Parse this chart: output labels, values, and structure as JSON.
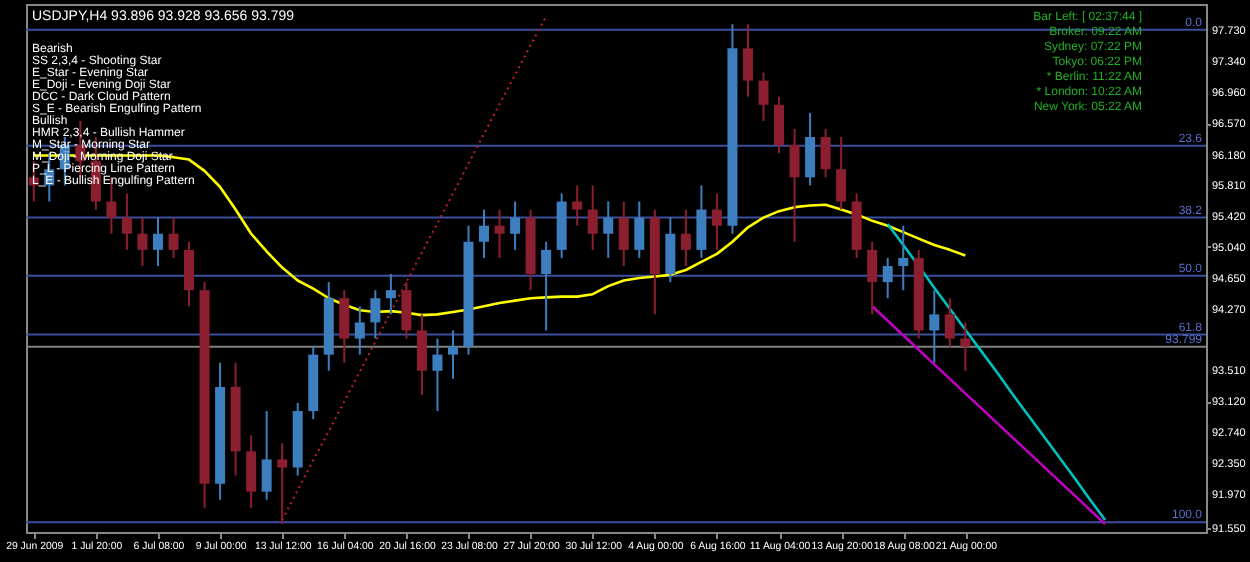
{
  "chart_data": {
    "type": "candlestick",
    "title": "USDJPY,H4  93.896 93.928 93.656 93.799",
    "categories": [
      "29 Jun 2009",
      null,
      null,
      null,
      "1 Jul 20:00",
      null,
      null,
      null,
      "6 Jul 08:00",
      null,
      null,
      null,
      "9 Jul 00:00",
      null,
      null,
      null,
      "13 Jul 12:00",
      null,
      null,
      null,
      "16 Jul 04:00",
      null,
      null,
      null,
      "20 Jul 16:00",
      null,
      null,
      null,
      "23 Jul 08:00",
      null,
      null,
      null,
      "27 Jul 20:00",
      null,
      null,
      null,
      "30 Jul 12:00",
      null,
      null,
      null,
      "4 Aug 00:00",
      null,
      null,
      null,
      "6 Aug 16:00",
      null,
      null,
      null,
      "11 Aug 04:00",
      null,
      null,
      null,
      "13 Aug 20:00",
      null,
      null,
      null,
      "18 Aug 08:00",
      null,
      null,
      null,
      "21 Aug 00:00",
      null,
      null,
      null,
      null,
      null,
      null,
      null,
      null,
      null,
      null,
      null,
      null,
      null,
      null,
      null
    ],
    "ohlc": [
      [
        95.9,
        96.1,
        95.6,
        95.8
      ],
      [
        95.8,
        96.2,
        95.6,
        96.0
      ],
      [
        96.0,
        96.4,
        95.8,
        96.3
      ],
      [
        96.3,
        96.6,
        95.9,
        96.1
      ],
      [
        96.1,
        96.4,
        95.5,
        95.6
      ],
      [
        95.6,
        95.9,
        95.2,
        95.4
      ],
      [
        95.4,
        95.7,
        95.0,
        95.2
      ],
      [
        95.2,
        95.4,
        94.8,
        95.0
      ],
      [
        95.0,
        95.4,
        94.8,
        95.2
      ],
      [
        95.2,
        95.4,
        94.9,
        95.0
      ],
      [
        95.0,
        95.1,
        94.3,
        94.5
      ],
      [
        94.5,
        94.6,
        91.8,
        92.1
      ],
      [
        92.1,
        93.6,
        91.9,
        93.3
      ],
      [
        93.3,
        93.6,
        92.2,
        92.5
      ],
      [
        92.5,
        92.7,
        91.8,
        92.0
      ],
      [
        92.0,
        93.0,
        91.9,
        92.4
      ],
      [
        92.4,
        92.6,
        91.6,
        92.3
      ],
      [
        92.3,
        93.1,
        92.2,
        93.0
      ],
      [
        93.0,
        93.8,
        92.9,
        93.7
      ],
      [
        93.7,
        94.6,
        93.5,
        94.4
      ],
      [
        94.4,
        94.5,
        93.6,
        93.9
      ],
      [
        93.9,
        94.3,
        93.7,
        94.1
      ],
      [
        94.1,
        94.5,
        93.9,
        94.4
      ],
      [
        94.4,
        94.7,
        94.2,
        94.5
      ],
      [
        94.5,
        94.6,
        93.9,
        94.0
      ],
      [
        94.0,
        94.2,
        93.2,
        93.5
      ],
      [
        93.5,
        93.9,
        93.0,
        93.7
      ],
      [
        93.7,
        94.0,
        93.4,
        93.8
      ],
      [
        93.8,
        95.3,
        93.7,
        95.1
      ],
      [
        95.1,
        95.5,
        94.9,
        95.3
      ],
      [
        95.3,
        95.5,
        94.9,
        95.2
      ],
      [
        95.2,
        95.6,
        95.0,
        95.4
      ],
      [
        95.4,
        95.5,
        94.5,
        94.7
      ],
      [
        94.7,
        95.1,
        94.0,
        95.0
      ],
      [
        95.0,
        95.7,
        94.9,
        95.6
      ],
      [
        95.6,
        95.8,
        95.3,
        95.5
      ],
      [
        95.5,
        95.8,
        95.0,
        95.2
      ],
      [
        95.2,
        95.6,
        94.9,
        95.4
      ],
      [
        95.4,
        95.6,
        94.8,
        95.0
      ],
      [
        95.0,
        95.6,
        94.9,
        95.4
      ],
      [
        95.4,
        95.5,
        94.2,
        94.7
      ],
      [
        94.7,
        95.4,
        94.6,
        95.2
      ],
      [
        95.2,
        95.5,
        94.8,
        95.0
      ],
      [
        95.0,
        95.8,
        94.9,
        95.5
      ],
      [
        95.5,
        95.7,
        95.0,
        95.3
      ],
      [
        95.3,
        97.8,
        95.2,
        97.5
      ],
      [
        97.5,
        97.8,
        96.9,
        97.1
      ],
      [
        97.1,
        97.2,
        96.6,
        96.8
      ],
      [
        96.8,
        96.9,
        96.2,
        96.3
      ],
      [
        96.3,
        96.5,
        95.1,
        95.9
      ],
      [
        95.9,
        96.7,
        95.8,
        96.4
      ],
      [
        96.4,
        96.5,
        95.9,
        96.0
      ],
      [
        96.0,
        96.4,
        95.5,
        95.6
      ],
      [
        95.6,
        95.7,
        94.9,
        95.0
      ],
      [
        95.0,
        95.1,
        94.2,
        94.6
      ],
      [
        94.6,
        94.9,
        94.4,
        94.8
      ],
      [
        94.8,
        95.3,
        94.5,
        94.9
      ],
      [
        94.9,
        95.0,
        93.9,
        94.0
      ],
      [
        94.0,
        94.5,
        93.6,
        94.2
      ],
      [
        94.2,
        94.4,
        93.8,
        93.9
      ],
      [
        93.9,
        94.1,
        93.5,
        93.8
      ],
      null,
      null,
      null,
      null,
      null,
      null,
      null,
      null,
      null,
      null,
      null,
      null,
      null,
      null,
      null
    ],
    "colors": [
      "#8c1f2f",
      "#3d7ebf",
      "#3d7ebf",
      "#8c1f2f",
      "#8c1f2f",
      "#8c1f2f",
      "#8c1f2f",
      "#8c1f2f",
      "#3d7ebf",
      "#8c1f2f",
      "#8c1f2f",
      "#8c1f2f",
      "#3d7ebf",
      "#8c1f2f",
      "#8c1f2f",
      "#3d7ebf",
      "#8c1f2f",
      "#3d7ebf",
      "#3d7ebf",
      "#3d7ebf",
      "#8c1f2f",
      "#3d7ebf",
      "#3d7ebf",
      "#3d7ebf",
      "#8c1f2f",
      "#8c1f2f",
      "#3d7ebf",
      "#3d7ebf",
      "#3d7ebf",
      "#3d7ebf",
      "#8c1f2f",
      "#3d7ebf",
      "#8c1f2f",
      "#3d7ebf",
      "#3d7ebf",
      "#8c1f2f",
      "#8c1f2f",
      "#3d7ebf",
      "#8c1f2f",
      "#3d7ebf",
      "#8c1f2f",
      "#3d7ebf",
      "#8c1f2f",
      "#3d7ebf",
      "#8c1f2f",
      "#3d7ebf",
      "#8c1f2f",
      "#8c1f2f",
      "#8c1f2f",
      "#8c1f2f",
      "#3d7ebf",
      "#8c1f2f",
      "#8c1f2f",
      "#8c1f2f",
      "#8c1f2f",
      "#3d7ebf",
      "#3d7ebf",
      "#8c1f2f",
      "#3d7ebf",
      "#8c1f2f",
      "#8c1f2f",
      null,
      null,
      null,
      null,
      null,
      null,
      null,
      null,
      null,
      null,
      null,
      null,
      null,
      null,
      null
    ],
    "series": [
      {
        "type": "line",
        "color": "#ffff00",
        "values": [
          96.17,
          96.17,
          96.17,
          96.17,
          96.17,
          96.17,
          96.17,
          96.17,
          96.17,
          96.15,
          96.12,
          95.98,
          95.78,
          95.5,
          95.2,
          94.98,
          94.78,
          94.62,
          94.52,
          94.4,
          94.32,
          94.25,
          94.23,
          94.24,
          94.22,
          94.19,
          94.2,
          94.23,
          94.26,
          94.3,
          94.34,
          94.37,
          94.4,
          94.41,
          94.42,
          94.42,
          94.45,
          94.55,
          94.62,
          94.65,
          94.67,
          94.69,
          94.75,
          94.85,
          94.95,
          95.1,
          95.28,
          95.4,
          95.48,
          95.53,
          95.55,
          95.56,
          95.5,
          95.44,
          95.36,
          95.3,
          95.22,
          95.14,
          95.06,
          95.0,
          94.93,
          null,
          null,
          null,
          null,
          null,
          null,
          null,
          null,
          null,
          null,
          null,
          null,
          null,
          null,
          null
        ]
      },
      {
        "type": "line",
        "color": "#00c0c0",
        "values": [
          null,
          null,
          null,
          null,
          null,
          null,
          null,
          null,
          null,
          null,
          null,
          null,
          null,
          null,
          null,
          null,
          null,
          null,
          null,
          null,
          null,
          null,
          null,
          null,
          null,
          null,
          null,
          null,
          null,
          null,
          null,
          null,
          null,
          null,
          null,
          null,
          null,
          null,
          null,
          null,
          null,
          null,
          null,
          null,
          null,
          null,
          null,
          null,
          null,
          null,
          null,
          null,
          null,
          null,
          null,
          95.32,
          95.06,
          94.8,
          94.53,
          94.27,
          94.01,
          93.75,
          93.49,
          93.22,
          92.96,
          92.7,
          92.44,
          92.18,
          91.91,
          91.65,
          null,
          null,
          null,
          null,
          null,
          null
        ]
      },
      {
        "type": "line",
        "color": "#c000c0",
        "values": [
          null,
          null,
          null,
          null,
          null,
          null,
          null,
          null,
          null,
          null,
          null,
          null,
          null,
          null,
          null,
          null,
          null,
          null,
          null,
          null,
          null,
          null,
          null,
          null,
          null,
          null,
          null,
          null,
          null,
          null,
          null,
          null,
          null,
          null,
          null,
          null,
          null,
          null,
          null,
          null,
          null,
          null,
          null,
          null,
          null,
          null,
          null,
          null,
          null,
          null,
          null,
          null,
          null,
          null,
          94.3,
          94.12,
          93.94,
          93.76,
          93.58,
          93.4,
          93.22,
          93.04,
          92.86,
          92.68,
          92.5,
          92.32,
          92.14,
          91.96,
          91.78,
          91.6,
          null,
          null,
          null,
          null,
          null,
          null
        ]
      },
      {
        "type": "line",
        "color": "#c02020",
        "line_style": "dotted",
        "values": [
          null,
          null,
          null,
          null,
          null,
          null,
          null,
          null,
          null,
          null,
          null,
          null,
          null,
          null,
          null,
          null,
          91.65,
          92.02,
          92.39,
          92.75,
          93.12,
          93.49,
          93.86,
          94.23,
          94.6,
          94.97,
          95.33,
          95.7,
          96.07,
          96.44,
          96.81,
          97.17,
          97.54,
          97.9,
          null,
          null,
          null,
          null,
          null,
          null,
          null,
          null,
          null,
          null,
          null,
          null,
          null,
          null,
          null,
          null,
          null,
          null,
          null,
          null,
          null,
          null,
          null,
          null,
          null,
          null,
          null,
          null,
          null,
          null,
          null,
          null,
          null,
          null,
          null,
          null,
          null,
          null,
          null,
          null,
          null,
          null
        ]
      }
    ],
    "ylim": [
      91.5,
      98.05
    ],
    "yticks": [
      {
        "value": 97.73,
        "label": "97.730"
      },
      {
        "value": 97.34,
        "label": "97.340"
      },
      {
        "value": 96.96,
        "label": "96.960"
      },
      {
        "value": 96.57,
        "label": "96.570"
      },
      {
        "value": 96.18,
        "label": "96.180"
      },
      {
        "value": 95.81,
        "label": "95.810"
      },
      {
        "value": 95.42,
        "label": "95.420"
      },
      {
        "value": 95.04,
        "label": "95.040"
      },
      {
        "value": 94.65,
        "label": "94.650"
      },
      {
        "value": 94.27,
        "label": "94.270"
      },
      {
        "value": 93.51,
        "label": "93.510"
      },
      {
        "value": 93.12,
        "label": "93.120"
      },
      {
        "value": 92.74,
        "label": "92.740"
      },
      {
        "value": 92.35,
        "label": "92.350"
      },
      {
        "value": 91.97,
        "label": "91.970"
      },
      {
        "value": 91.55,
        "label": "91.550"
      }
    ],
    "ref_lines": [
      {
        "axis": "y",
        "value": 97.73,
        "color": "#3c4f9c"
      },
      {
        "axis": "y",
        "value": 96.29,
        "color": "#3c4f9c"
      },
      {
        "axis": "y",
        "value": 95.4,
        "color": "#3c4f9c"
      },
      {
        "axis": "y",
        "value": 94.68,
        "color": "#3c4f9c"
      },
      {
        "axis": "y",
        "value": 93.95,
        "color": "#3c4f9c"
      },
      {
        "axis": "y",
        "value": 91.62,
        "color": "#3c4f9c"
      },
      {
        "axis": "y",
        "value": 93.799,
        "label": "93.799",
        "color": "#808080"
      }
    ],
    "annotations": [
      "Bearish",
      "SS 2,3,4 - Shooting Star",
      "E_Star - Evening Star",
      "E_Doji - Evening Doji Star",
      "DCC - Dark Cloud Pattern",
      "S_E - Bearish Engulfing Pattern",
      "Bullish",
      "HMR 2,3,4 - Bullish Hammer",
      "M_Star - Morning Star",
      "M_Doji - Morning Doji Star",
      "P_L - Piercing Line Pattern",
      "L_E - Bullish Engulfing Pattern",
      "Bar Left: [ 02:37:44 ]",
      "Broker:  09:22 AM",
      "Sydney:  07:22 PM",
      "Tokyo:  06:22 PM",
      "* Berlin:  11:22 AM",
      "* London:  10:22 AM",
      "New York:  05:22 AM",
      {
        "text": "0.0",
        "y": 97.73
      },
      {
        "text": "23.6",
        "y": 96.29
      },
      {
        "text": "38.2",
        "y": 95.4
      },
      {
        "text": "50.0",
        "y": 94.68
      },
      {
        "text": "61.8",
        "y": 93.95
      },
      {
        "text": "100.0",
        "y": 91.62
      }
    ]
  }
}
